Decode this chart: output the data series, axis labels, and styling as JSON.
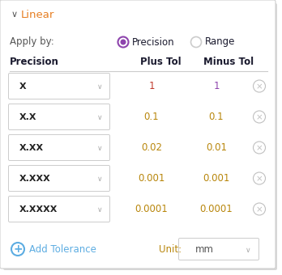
{
  "title": "Linear",
  "apply_by_label": "Apply by:",
  "radio_precision_label": "Precision",
  "radio_range_label": "Range",
  "col_headers": [
    "Precision",
    "Plus Tol",
    "Minus Tol"
  ],
  "rows": [
    {
      "precision": "X",
      "plus": "1",
      "minus": "1"
    },
    {
      "precision": "X.X",
      "plus": "0.1",
      "minus": "0.1"
    },
    {
      "precision": "X.XX",
      "plus": "0.02",
      "minus": "0.01"
    },
    {
      "precision": "X.XXX",
      "plus": "0.001",
      "minus": "0.001"
    },
    {
      "precision": "X.XXXX",
      "plus": "0.0001",
      "minus": "0.0001"
    }
  ],
  "add_tolerance_label": "Add Tolerance",
  "unit_label": "Unit:",
  "unit_value": "mm",
  "bg_color": "#ffffff",
  "panel_border_color": "#d0d0d0",
  "header_text_color": "#1a1a2e",
  "precision_text_color": "#222222",
  "row1_plus_color": "#c0392b",
  "row1_minus_color": "#8e44ad",
  "tol_color": "#b8860b",
  "add_tol_color": "#5dade2",
  "radio_selected_color": "#8e44ad",
  "radio_unselected_color": "#cccccc",
  "linear_color": "#e67e22",
  "chevron_color": "#555555",
  "row_border_color": "#cccccc",
  "dropdown_arrow_color": "#aaaaaa",
  "x_close_color": "#c0c0c0",
  "unit_label_color": "#b8860b",
  "mm_text_color": "#555555",
  "shadow_right": "#d8d8d8",
  "apply_by_color": "#555555"
}
